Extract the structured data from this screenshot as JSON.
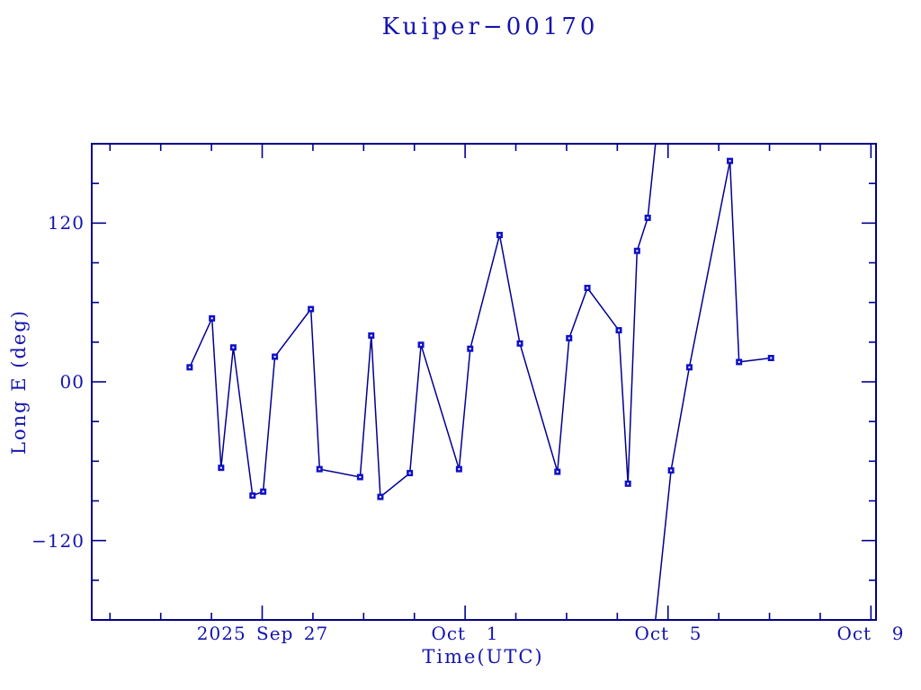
{
  "colors": {
    "background": "#ffffff",
    "axis": "#00008b",
    "text": "#1414ae",
    "line": "#000090",
    "marker_fill": "#0f0fc8",
    "marker_center": "#ffffff"
  },
  "chart_data": {
    "type": "line",
    "title": "Kuiper−00170",
    "xlabel": "Time(UTC)",
    "ylabel": "Long E (deg)",
    "x_unit": "days since 2025 Sep 27 00:00 UTC",
    "xlim": [
      -3.36,
      12.1
    ],
    "ylim": [
      -180,
      180
    ],
    "grid": false,
    "legend": null,
    "wrap_at": 180,
    "x_major_ticks": {
      "values": [
        0,
        4,
        8,
        12
      ],
      "labels": [
        "2025 Sep 27",
        "Oct  1",
        "Oct  5",
        "Oct  9"
      ]
    },
    "x_minor_tick_step": 1,
    "y_major_ticks": {
      "values": [
        120,
        0,
        -120
      ],
      "labels": [
        "120",
        "00",
        "−120"
      ]
    },
    "y_minor_tick_step": 30,
    "series": [
      {
        "name": "Long E",
        "x": [
          -1.43,
          -0.99,
          -0.81,
          -0.57,
          -0.19,
          0.02,
          0.25,
          0.96,
          1.13,
          1.93,
          2.15,
          2.33,
          2.91,
          3.13,
          3.88,
          4.1,
          4.68,
          5.08,
          5.82,
          6.05,
          6.41,
          7.03,
          7.21,
          7.39,
          7.6,
          8.06,
          8.42,
          9.22,
          9.4,
          10.03
        ],
        "y": [
          11,
          48,
          -65,
          26,
          -86,
          -83,
          19,
          55,
          -66,
          -72,
          35,
          -87,
          -69,
          28,
          -66,
          25,
          111,
          29,
          -68,
          33,
          71,
          39,
          -77,
          99,
          124,
          -67,
          11,
          167,
          15,
          18
        ]
      }
    ]
  }
}
